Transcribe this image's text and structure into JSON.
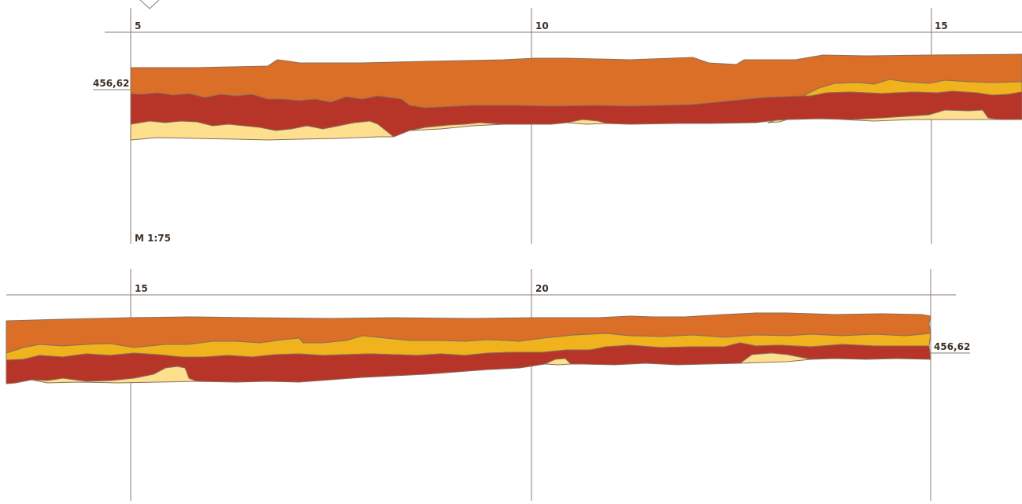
{
  "profile": {
    "scale_label": "M 1:75",
    "colors": {
      "topsoil": "#db6f28",
      "yellow": "#f0b21d",
      "red": "#b73428",
      "sand": "#fddf8e",
      "grid": "#8a7b70"
    },
    "upper": {
      "distance_labels": [
        "5",
        "10",
        "15"
      ],
      "elevation_label": "456,62"
    },
    "lower": {
      "distance_labels": [
        "15",
        "20"
      ],
      "elevation_label": "456,62"
    }
  }
}
